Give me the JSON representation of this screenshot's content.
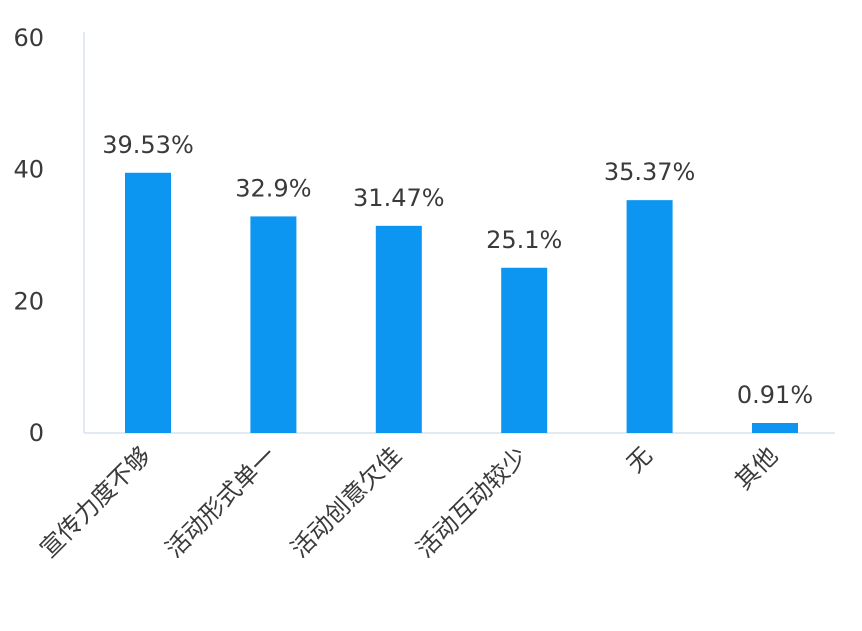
{
  "chart_data": {
    "type": "bar",
    "title": "",
    "xlabel": "",
    "ylabel": "",
    "categories": [
      "宣传力度不够",
      "活动形式单一",
      "活动创意欠佳",
      "活动互动较少",
      "无",
      "其他"
    ],
    "values": [
      39.53,
      32.9,
      31.47,
      25.1,
      35.37,
      0.91
    ],
    "data_labels": [
      "39.53%",
      "32.9%",
      "31.47%",
      "25.1%",
      "35.37%",
      "0.91%"
    ],
    "ylim": [
      0,
      60
    ],
    "yticks": [
      0,
      20,
      40,
      60
    ],
    "grid": false,
    "legend": "none",
    "colors": {
      "bar": "#0d95f2",
      "axis": "#d9e2ec",
      "text": "#3a3a3a"
    }
  }
}
